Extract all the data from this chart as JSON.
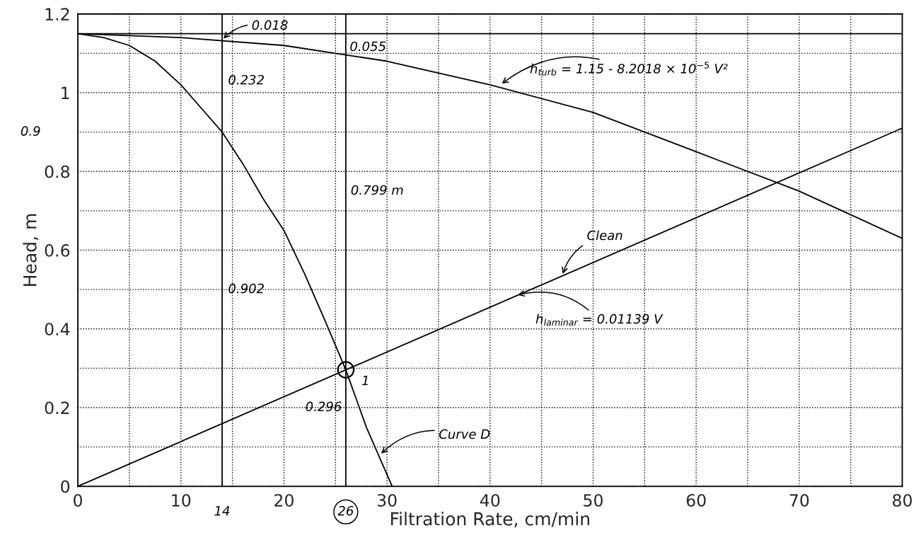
{
  "chart_data": {
    "type": "line",
    "xlabel": "Filtration Rate, cm/min",
    "ylabel": "Head, m",
    "xlim": [
      0,
      80
    ],
    "ylim": [
      0,
      1.2
    ],
    "xticks": [
      0,
      {
        "value": 5,
        "label": null
      },
      10,
      {
        "value": 15,
        "label": null
      },
      20,
      {
        "value": 25,
        "label": null
      },
      30,
      {
        "value": 35,
        "label": null
      },
      40,
      {
        "value": 45,
        "label": null
      },
      50,
      {
        "value": 55,
        "label": null
      },
      60,
      {
        "value": 65,
        "label": null
      },
      70,
      {
        "value": 75,
        "label": null
      },
      80
    ],
    "yticks": [
      0,
      {
        "value": 0.1,
        "label": null
      },
      0.2,
      {
        "value": 0.3,
        "label": null
      },
      0.4,
      {
        "value": 0.5,
        "label": null
      },
      0.6,
      {
        "value": 0.7,
        "label": null
      },
      0.8,
      {
        "value": 0.9,
        "label": null
      },
      {
        "value": 1,
        "label": "1"
      },
      {
        "value": 1.1,
        "label": null
      },
      1.2
    ],
    "grid": true,
    "marker": "none",
    "line_style": "solid",
    "series": [
      {
        "color": "#000000",
        "x": [
          0,
          10,
          20,
          30,
          40,
          50,
          60,
          70,
          80
        ],
        "values": [
          1.15,
          1.14,
          1.12,
          1.08,
          1.02,
          0.95,
          0.85,
          0.75,
          0.63
        ]
      },
      {
        "color": "#000000",
        "x": [
          0,
          80
        ],
        "values": [
          0,
          0.91
        ]
      },
      {
        "color": "#000000",
        "x": [
          0,
          2.5,
          5,
          7.5,
          10,
          12,
          14,
          16,
          18,
          20,
          22,
          24,
          26,
          28,
          30.5
        ],
        "values": [
          1.15,
          1.14,
          1.12,
          1.08,
          1.02,
          0.96,
          0.9,
          0.82,
          0.73,
          0.65,
          0.54,
          0.42,
          0.296,
          0.15,
          0
        ]
      },
      {
        "type": "scatter",
        "marker": "circle",
        "color": "#000000",
        "x": [
          26
        ],
        "values": [
          0.296
        ]
      }
    ],
    "ref_lines": [
      {
        "axis": "y",
        "value": 1.15,
        "color": "#000000"
      },
      {
        "axis": "x",
        "value": 14,
        "color": "#000000"
      },
      {
        "axis": "x",
        "value": 26,
        "color": "#000000"
      }
    ],
    "annotations": [
      {
        "text": "0.018",
        "x": 14,
        "y": 1.134
      },
      {
        "text": "0.055",
        "x": 26,
        "y": 1.095
      },
      {
        "text": "0.232",
        "x": 14,
        "y": 1.02
      },
      "0.9",
      {
        "text": "0.902",
        "x": 14,
        "y": 0.5
      },
      {
        "text": "0.799 m",
        "x": 26,
        "y": 0.75
      },
      {
        "text": "0.296",
        "x": 26,
        "y": 0.2
      },
      {
        "text": "1",
        "x": 26,
        "y": 0.296
      },
      {
        "text": "14",
        "x": 14,
        "y": 0
      },
      {
        "text": "26",
        "x": 26,
        "y": 0
      },
      {
        "text": "h$_{turb}$ = 1.15 - 8.2018 × 10$^{−5}$ V²",
        "x": 41,
        "y": 1.02
      },
      {
        "text": "Clean",
        "x": 47,
        "y": 0.535
      },
      {
        "text": "h$_{laminar}$ = 0.01139 V",
        "x": 42.5,
        "y": 0.485
      },
      {
        "text": "Curve D",
        "x": 29.3,
        "y": 0.08
      }
    ]
  }
}
